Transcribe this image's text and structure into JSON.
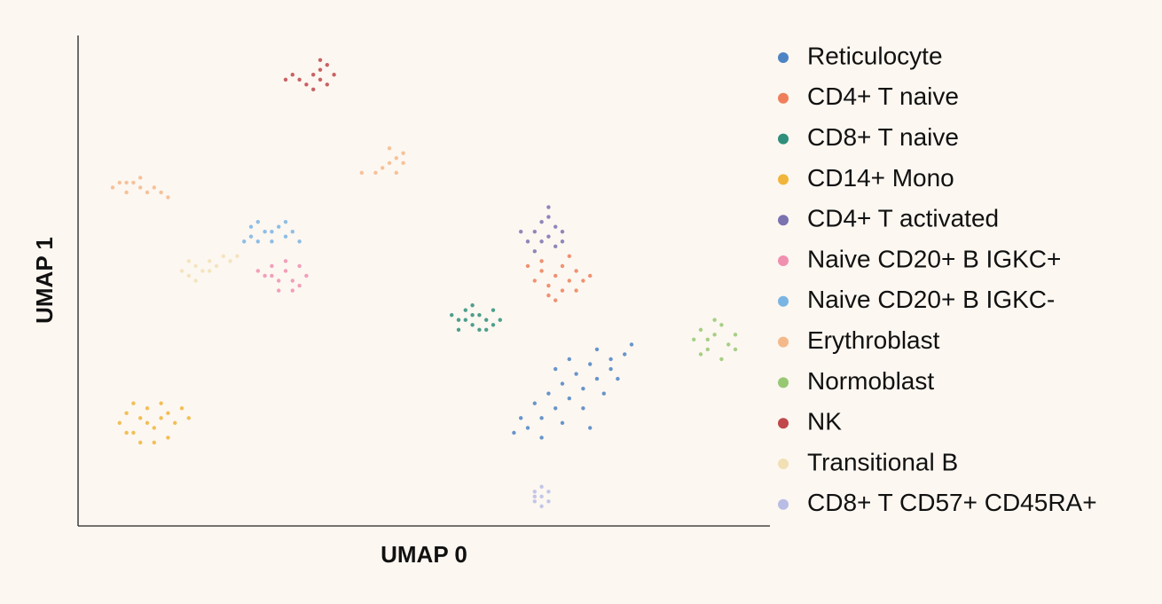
{
  "chart_data": {
    "type": "scatter",
    "x_label": "UMAP 0",
    "y_label": "UMAP 1",
    "xlim": [
      0,
      100
    ],
    "ylim": [
      0,
      100
    ],
    "series": [
      {
        "name": "Reticulocyte",
        "color": "#4e84c4",
        "x": [
          65,
          67,
          69,
          71,
          73,
          75,
          77,
          79,
          80,
          68,
          70,
          72,
          74,
          66,
          70,
          73,
          76,
          78,
          71,
          67,
          64,
          75,
          69,
          74,
          63,
          77
        ],
        "y": [
          20,
          22,
          24,
          26,
          28,
          30,
          32,
          35,
          37,
          27,
          29,
          31,
          33,
          25,
          21,
          24,
          27,
          30,
          34,
          18,
          22,
          36,
          32,
          20,
          19,
          34
        ]
      },
      {
        "name": "CD4+ T naive",
        "color": "#ee7f5a",
        "x": [
          66,
          67,
          68,
          69,
          70,
          71,
          72,
          73,
          68,
          70,
          72,
          67,
          71,
          65,
          74,
          69
        ],
        "y": [
          50,
          52,
          49,
          51,
          53,
          50,
          52,
          50,
          47,
          48,
          48,
          54,
          55,
          53,
          51,
          46
        ]
      },
      {
        "name": "CD8+ T naive",
        "color": "#2f8f7a",
        "x": [
          55,
          56,
          57,
          58,
          59,
          60,
          55,
          57,
          58,
          56,
          59,
          61,
          54,
          57,
          60
        ],
        "y": [
          42,
          44,
          41,
          43,
          42,
          44,
          40,
          45,
          40,
          42,
          40,
          42,
          43,
          43,
          41
        ]
      },
      {
        "name": "CD14+ Mono",
        "color": "#f0b53a",
        "x": [
          6,
          7,
          8,
          9,
          10,
          11,
          12,
          13,
          14,
          15,
          9,
          11,
          12,
          8,
          16,
          10,
          13,
          7
        ],
        "y": [
          21,
          23,
          19,
          22,
          24,
          20,
          22,
          18,
          21,
          24,
          17,
          17,
          25,
          25,
          22,
          21,
          23,
          19
        ]
      },
      {
        "name": "CD4+ T activated",
        "color": "#7b72b0",
        "x": [
          65,
          66,
          67,
          68,
          69,
          70,
          66,
          68,
          69,
          67,
          70,
          64,
          68
        ],
        "y": [
          58,
          60,
          62,
          59,
          61,
          58,
          56,
          63,
          57,
          58,
          60,
          60,
          65
        ]
      },
      {
        "name": "Naive CD20+ B IGKC+",
        "color": "#f08fb0",
        "x": [
          27,
          28,
          29,
          30,
          31,
          32,
          33,
          29,
          31,
          28,
          30,
          26,
          32
        ],
        "y": [
          51,
          53,
          50,
          52,
          50,
          53,
          51,
          48,
          48,
          51,
          54,
          52,
          49
        ]
      },
      {
        "name": "Naive CD20+ B IGKC-",
        "color": "#7ab4e3",
        "x": [
          25,
          25,
          26,
          27,
          28,
          29,
          30,
          31,
          32,
          26,
          30,
          28,
          24
        ],
        "y": [
          59,
          61,
          58,
          60,
          58,
          61,
          59,
          60,
          58,
          62,
          62,
          60,
          58
        ]
      },
      {
        "name": "Erythroblast",
        "color": "#f4b98a",
        "x": [
          5,
          6,
          7,
          8,
          9,
          10,
          11,
          12,
          13,
          7,
          9,
          41,
          43,
          44,
          45,
          46,
          47,
          47,
          46,
          45
        ],
        "y": [
          69,
          70,
          68,
          70,
          69,
          68,
          69,
          68,
          67,
          70,
          71,
          72,
          72,
          73,
          74,
          75,
          76,
          74,
          72,
          77
        ]
      },
      {
        "name": "Normoblast",
        "color": "#98c872",
        "x": [
          89,
          90,
          91,
          92,
          93,
          94,
          95,
          90,
          92,
          93,
          91,
          95
        ],
        "y": [
          38,
          40,
          36,
          39,
          41,
          37,
          39,
          35,
          42,
          34,
          38,
          36
        ]
      },
      {
        "name": "NK",
        "color": "#c0474a",
        "x": [
          31,
          32,
          33,
          34,
          35,
          36,
          35,
          36,
          34,
          37,
          30,
          35
        ],
        "y": [
          92,
          91,
          90,
          92,
          91,
          90,
          93,
          94,
          89,
          92,
          91,
          95
        ]
      },
      {
        "name": "Transitional B",
        "color": "#f2e0b5",
        "x": [
          15,
          16,
          17,
          18,
          19,
          20,
          21,
          22,
          16,
          19,
          17,
          23
        ],
        "y": [
          52,
          51,
          53,
          52,
          54,
          53,
          55,
          54,
          54,
          52,
          50,
          55
        ]
      },
      {
        "name": "CD8+ T CD57+ CD45RA+",
        "color": "#b9bde6",
        "x": [
          66,
          67,
          68,
          66,
          67,
          68,
          67,
          66
        ],
        "y": [
          5,
          6,
          5,
          7,
          4,
          7,
          8,
          6
        ]
      }
    ]
  }
}
